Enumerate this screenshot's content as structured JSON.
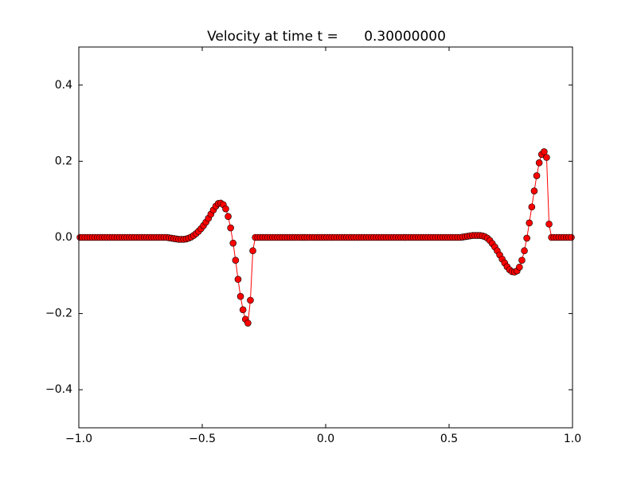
{
  "chart_data": {
    "type": "line",
    "title": "Velocity at time t =      0.30000000",
    "x": [
      -0.995,
      -0.985,
      -0.975,
      -0.965,
      -0.955,
      -0.945,
      -0.935,
      -0.925,
      -0.915,
      -0.905,
      -0.895,
      -0.885,
      -0.875,
      -0.865,
      -0.855,
      -0.845,
      -0.835,
      -0.825,
      -0.815,
      -0.805,
      -0.795,
      -0.785,
      -0.775,
      -0.765,
      -0.755,
      -0.745,
      -0.735,
      -0.725,
      -0.715,
      -0.705,
      -0.695,
      -0.685,
      -0.675,
      -0.665,
      -0.655,
      -0.645,
      -0.635,
      -0.625,
      -0.615,
      -0.605,
      -0.595,
      -0.585,
      -0.575,
      -0.565,
      -0.555,
      -0.545,
      -0.535,
      -0.525,
      -0.515,
      -0.505,
      -0.495,
      -0.485,
      -0.475,
      -0.465,
      -0.455,
      -0.445,
      -0.435,
      -0.425,
      -0.415,
      -0.405,
      -0.395,
      -0.385,
      -0.375,
      -0.365,
      -0.355,
      -0.345,
      -0.335,
      -0.325,
      -0.315,
      -0.305,
      -0.295,
      -0.285,
      -0.275,
      -0.265,
      -0.255,
      -0.245,
      -0.235,
      -0.225,
      -0.215,
      -0.205,
      -0.195,
      -0.185,
      -0.175,
      -0.165,
      -0.155,
      -0.145,
      -0.135,
      -0.125,
      -0.115,
      -0.105,
      -0.095,
      -0.085,
      -0.075,
      -0.065,
      -0.055,
      -0.045,
      -0.035,
      -0.025,
      -0.015,
      -0.005,
      0.005,
      0.015,
      0.025,
      0.035,
      0.045,
      0.055,
      0.065,
      0.075,
      0.085,
      0.095,
      0.105,
      0.115,
      0.125,
      0.135,
      0.145,
      0.155,
      0.165,
      0.175,
      0.185,
      0.195,
      0.205,
      0.215,
      0.225,
      0.235,
      0.245,
      0.255,
      0.265,
      0.275,
      0.285,
      0.295,
      0.305,
      0.315,
      0.325,
      0.335,
      0.345,
      0.355,
      0.365,
      0.375,
      0.385,
      0.395,
      0.405,
      0.415,
      0.425,
      0.435,
      0.445,
      0.455,
      0.465,
      0.475,
      0.485,
      0.495,
      0.505,
      0.515,
      0.525,
      0.535,
      0.545,
      0.555,
      0.565,
      0.575,
      0.585,
      0.595,
      0.605,
      0.615,
      0.625,
      0.635,
      0.645,
      0.655,
      0.665,
      0.675,
      0.685,
      0.695,
      0.705,
      0.715,
      0.725,
      0.735,
      0.745,
      0.755,
      0.765,
      0.775,
      0.785,
      0.795,
      0.805,
      0.815,
      0.825,
      0.835,
      0.845,
      0.855,
      0.865,
      0.875,
      0.885,
      0.895,
      0.905,
      0.915,
      0.925,
      0.935,
      0.945,
      0.955,
      0.965,
      0.975,
      0.985,
      0.995
    ],
    "values": [
      0,
      0,
      0,
      0,
      0,
      0,
      0,
      0,
      0,
      0,
      0,
      0,
      0,
      0,
      0,
      0,
      0,
      0,
      0,
      0,
      0,
      0,
      0,
      0,
      0,
      0,
      0,
      0,
      0,
      0,
      0,
      0,
      0,
      0,
      0,
      0,
      -0.001,
      -0.002,
      -0.003,
      -0.004,
      -0.005,
      -0.005,
      -0.005,
      -0.004,
      -0.002,
      0.001,
      0.005,
      0.01,
      0.016,
      0.023,
      0.031,
      0.04,
      0.05,
      0.061,
      0.072,
      0.082,
      0.089,
      0.09,
      0.086,
      0.075,
      0.055,
      0.025,
      -0.015,
      -0.06,
      -0.11,
      -0.155,
      -0.19,
      -0.215,
      -0.225,
      -0.165,
      -0.035,
      0,
      0,
      0,
      0,
      0,
      0,
      0,
      0,
      0,
      0,
      0,
      0,
      0,
      0,
      0,
      0,
      0,
      0,
      0,
      0,
      0,
      0,
      0,
      0,
      0,
      0,
      0,
      0,
      0,
      0,
      0,
      0,
      0,
      0,
      0,
      0,
      0,
      0,
      0,
      0,
      0,
      0,
      0,
      0,
      0,
      0,
      0,
      0,
      0,
      0,
      0,
      0,
      0,
      0,
      0,
      0,
      0,
      0,
      0,
      0,
      0,
      0,
      0,
      0,
      0,
      0,
      0,
      0,
      0,
      0,
      0,
      0,
      0,
      0,
      0,
      0,
      0,
      0,
      0,
      0,
      0,
      0,
      0,
      0,
      0.001,
      0.002,
      0.003,
      0.004,
      0.005,
      0.005,
      0.005,
      0.005,
      0.004,
      0.002,
      -0.002,
      -0.008,
      -0.016,
      -0.025,
      -0.035,
      -0.046,
      -0.057,
      -0.067,
      -0.077,
      -0.085,
      -0.09,
      -0.091,
      -0.088,
      -0.078,
      -0.06,
      -0.035,
      -0.002,
      0.038,
      0.08,
      0.122,
      0.162,
      0.196,
      0.218,
      0.225,
      0.21,
      0.035,
      0,
      0,
      0,
      0,
      0,
      0,
      0,
      0,
      0
    ],
    "color": "#ff0000",
    "marker_edge_color": "#000000",
    "xlim": [
      -1,
      1
    ],
    "xticks": [
      {
        "value": -1,
        "label": "−1.0"
      },
      {
        "value": -0.5,
        "label": "−0.5"
      },
      {
        "value": 0,
        "label": "0.0"
      },
      {
        "value": 0.5,
        "label": "0.5"
      },
      {
        "value": 1,
        "label": "1.0"
      }
    ],
    "ylim": [
      -0.5,
      0.5
    ],
    "yticks": [
      {
        "value": -0.4,
        "label": "−0.4"
      },
      {
        "value": -0.2,
        "label": "−0.2"
      },
      {
        "value": 0,
        "label": "0.0"
      },
      {
        "value": 0.2,
        "label": "0.2"
      },
      {
        "value": 0.4,
        "label": "0.4"
      }
    ],
    "grid": false
  }
}
